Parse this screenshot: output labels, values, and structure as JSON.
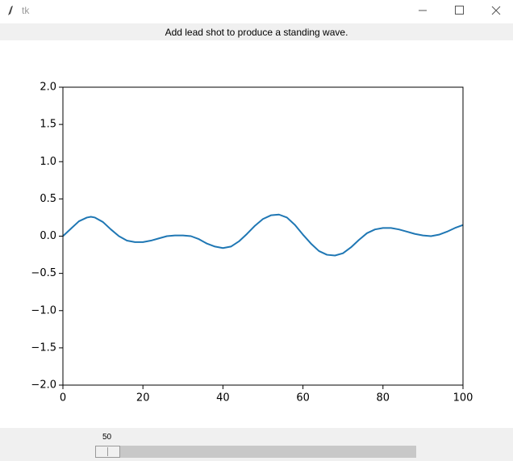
{
  "window": {
    "title": "tk"
  },
  "header": {
    "label": "Add lead shot to produce a standing wave."
  },
  "chart_data": {
    "type": "line",
    "color": "#1f77b4",
    "x": [
      0,
      2,
      4,
      6,
      7,
      8,
      10,
      12,
      14,
      16,
      18,
      20,
      22,
      24,
      26,
      28,
      30,
      32,
      34,
      36,
      38,
      40,
      42,
      44,
      46,
      48,
      50,
      52,
      54,
      56,
      58,
      60,
      62,
      64,
      66,
      68,
      70,
      72,
      74,
      76,
      78,
      80,
      82,
      84,
      86,
      88,
      90,
      92,
      94,
      96,
      98,
      100
    ],
    "values": [
      0.0,
      0.1,
      0.2,
      0.25,
      0.26,
      0.25,
      0.19,
      0.09,
      0.0,
      -0.06,
      -0.08,
      -0.08,
      -0.06,
      -0.03,
      0.0,
      0.01,
      0.01,
      0.0,
      -0.04,
      -0.1,
      -0.14,
      -0.16,
      -0.14,
      -0.07,
      0.03,
      0.14,
      0.23,
      0.28,
      0.29,
      0.25,
      0.15,
      0.02,
      -0.1,
      -0.2,
      -0.25,
      -0.26,
      -0.23,
      -0.15,
      -0.05,
      0.04,
      0.09,
      0.11,
      0.11,
      0.09,
      0.06,
      0.03,
      0.01,
      0.0,
      0.02,
      0.06,
      0.11,
      0.15
    ],
    "xlim": [
      0,
      100
    ],
    "xticks": [
      0,
      20,
      40,
      60,
      80,
      100
    ],
    "ylim": [
      -2.0,
      2.0
    ],
    "yticks": [
      {
        "value": -2.0,
        "label": "−2.0"
      },
      {
        "value": -1.5,
        "label": "−1.5"
      },
      {
        "value": -1.0,
        "label": "−1.0"
      },
      {
        "value": -0.5,
        "label": "−0.5"
      },
      {
        "value": 0.0,
        "label": "0.0"
      },
      0.5,
      {
        "value": 1.0,
        "label": "1.0"
      },
      1.5,
      {
        "value": 2.0,
        "label": "2.0"
      }
    ]
  },
  "slider": {
    "value": 50
  }
}
